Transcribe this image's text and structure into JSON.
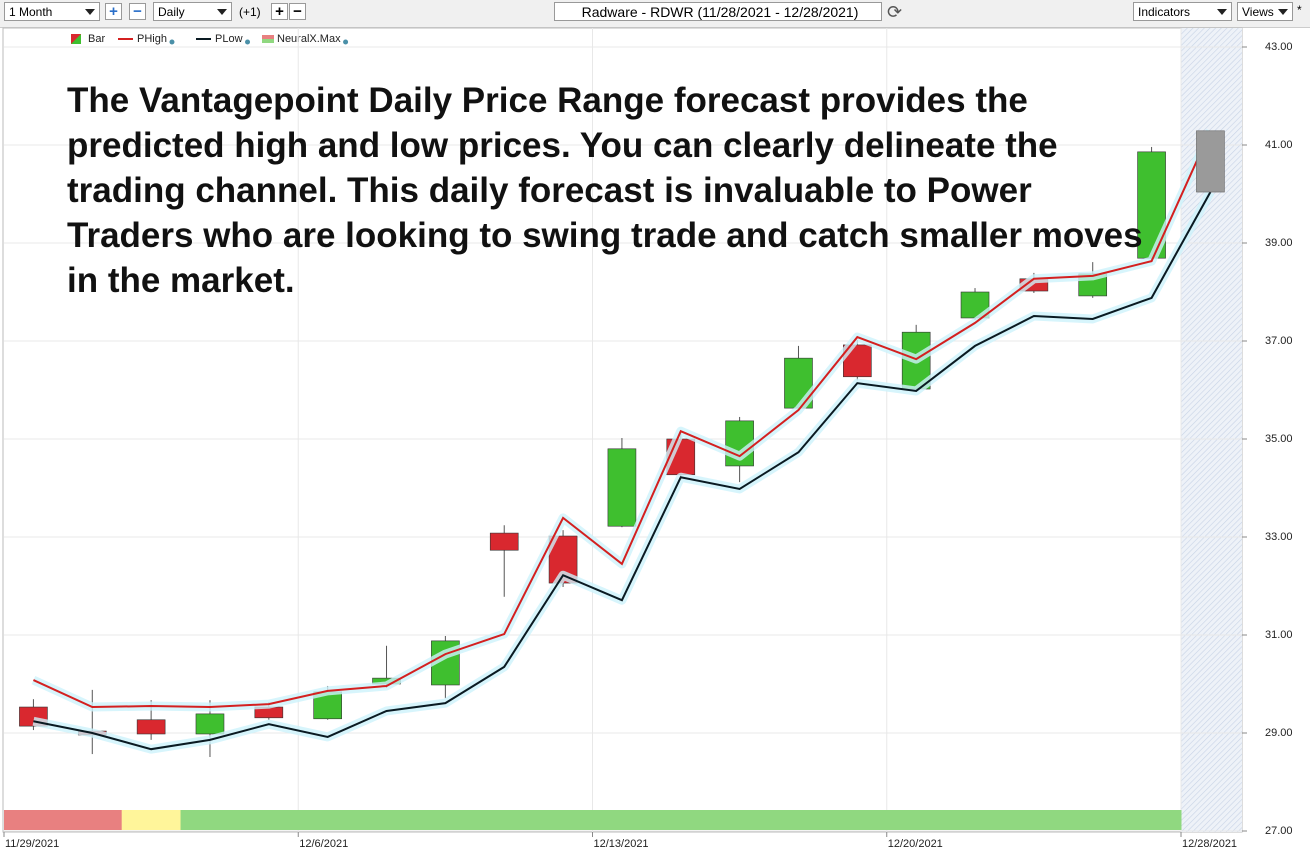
{
  "toolbar": {
    "period": "1 Month",
    "interval": "Daily",
    "offset": "(+1)",
    "title": "Radware - RDWR (11/28/2021 - 12/28/2021)",
    "indicators": "Indicators",
    "views": "Views"
  },
  "chart_data": {
    "type": "candlestick",
    "annotation": "The Vantagepoint Daily Price Range forecast provides the predicted high and low prices.  You can clearly delineate the trading channel.  This daily forecast is invaluable to Power Traders who are looking to swing trade and catch smaller moves in the market.",
    "categories": [
      "11/29/2021",
      null,
      null,
      null,
      null,
      "12/6/2021",
      null,
      null,
      null,
      null,
      "12/13/2021",
      null,
      null,
      null,
      null,
      "12/20/2021",
      null,
      null,
      null,
      null,
      "12/28/2021"
    ],
    "candles": {
      "name": "Bar",
      "up_color": "#3fbf2f",
      "down_color": "#d9282f",
      "open": [
        29.53,
        29.04,
        29.27,
        28.98,
        29.53,
        29.29,
        30.0,
        29.98,
        33.08,
        33.02,
        33.22,
        35.0,
        34.45,
        35.63,
        36.92,
        36.02,
        37.47,
        38.27,
        37.92,
        38.69
      ],
      "high": [
        29.69,
        29.88,
        29.67,
        29.67,
        29.63,
        29.96,
        30.78,
        30.98,
        33.24,
        33.14,
        35.02,
        35.14,
        35.45,
        36.9,
        37.02,
        37.33,
        38.08,
        38.39,
        38.61,
        40.96
      ],
      "low": [
        29.06,
        28.57,
        28.86,
        28.51,
        29.27,
        29.27,
        29.92,
        29.71,
        31.78,
        31.98,
        33.2,
        34.16,
        34.12,
        35.59,
        36.2,
        35.96,
        37.43,
        37.98,
        37.88,
        38.61
      ],
      "close": [
        29.14,
        28.96,
        28.98,
        29.39,
        29.31,
        29.84,
        30.12,
        30.88,
        32.73,
        32.06,
        34.8,
        34.27,
        35.37,
        36.65,
        36.27,
        37.18,
        38.0,
        38.02,
        38.37,
        40.86
      ]
    },
    "forecast": {
      "high": 41.29,
      "low": 40.04,
      "color": "#9a9a9a"
    },
    "series": [
      {
        "name": "PHigh",
        "color": "#d42020",
        "values": [
          30.08,
          29.53,
          29.55,
          29.53,
          29.59,
          29.86,
          29.96,
          30.61,
          31.02,
          33.39,
          32.45,
          35.16,
          34.65,
          35.59,
          37.08,
          36.63,
          37.37,
          38.27,
          38.33,
          38.63,
          41.29
        ]
      },
      {
        "name": "PLow",
        "color": "#0a1a22",
        "values": [
          29.24,
          29.0,
          28.67,
          28.86,
          29.18,
          28.92,
          29.45,
          29.61,
          30.35,
          32.22,
          31.71,
          34.22,
          33.98,
          34.73,
          36.14,
          35.98,
          36.9,
          37.51,
          37.45,
          37.88,
          40.04
        ]
      }
    ],
    "neuralx": {
      "name": "NeuralX.Max",
      "colors": [
        "#e88080",
        "#e88080",
        "#fff59a",
        "#90d880",
        "#90d880",
        "#90d880",
        "#90d880",
        "#90d880",
        "#90d880",
        "#90d880",
        "#90d880",
        "#90d880",
        "#90d880",
        "#90d880",
        "#90d880",
        "#90d880",
        "#90d880",
        "#90d880",
        "#90d880",
        "#90d880"
      ]
    },
    "ylim": [
      27,
      43
    ],
    "yticks": [
      {
        "value": 27,
        "label": "27.00"
      },
      {
        "value": 29,
        "label": "29.00"
      },
      {
        "value": 31,
        "label": "31.00"
      },
      {
        "value": 33,
        "label": "33.00"
      },
      {
        "value": 35,
        "label": "35.00"
      },
      {
        "value": 37,
        "label": "37.00"
      },
      {
        "value": 39,
        "label": "39.00"
      },
      {
        "value": 41,
        "label": "41.00"
      },
      {
        "value": 43,
        "label": "43.00"
      }
    ],
    "grid": true
  }
}
